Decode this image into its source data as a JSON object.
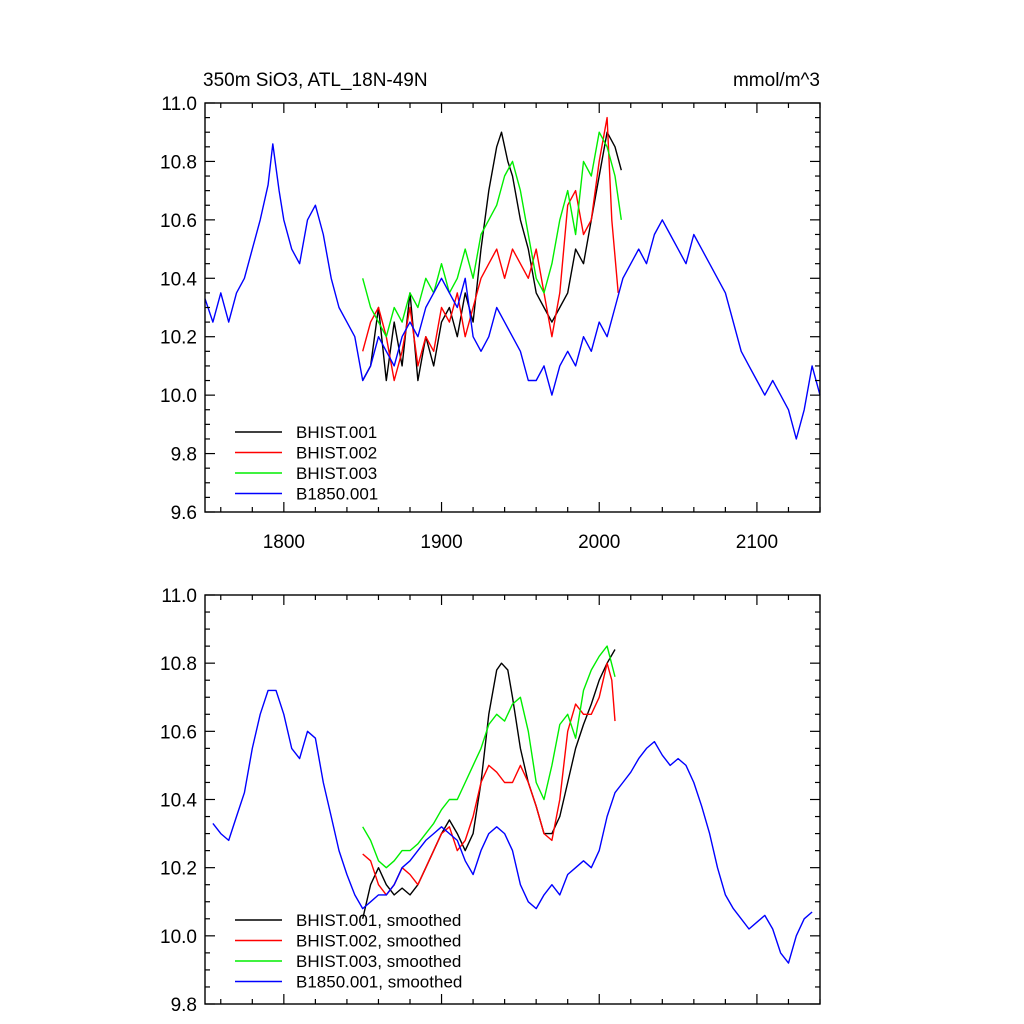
{
  "chart_data": [
    {
      "type": "line",
      "title": "350m SiO3, ATL_18N-49N",
      "units": "mmol/m^3",
      "xlim": [
        1750,
        2140
      ],
      "ylim": [
        9.6,
        11.0
      ],
      "xticks": [
        1800,
        1900,
        2000,
        2100
      ],
      "yticks": [
        9.6,
        9.8,
        10.0,
        10.2,
        10.4,
        10.6,
        10.8,
        11.0
      ],
      "xtick_labels": [
        "1800",
        "1900",
        "2000",
        "2100"
      ],
      "ytick_labels": [
        "9.6",
        "9.8",
        "10.0",
        "10.2",
        "10.4",
        "10.6",
        "10.8",
        "11.0"
      ],
      "legend_position": "bottom-left",
      "series": [
        {
          "name": "BHIST.001",
          "color": "#000000",
          "x": [
            1850,
            1855,
            1860,
            1865,
            1870,
            1875,
            1880,
            1885,
            1890,
            1895,
            1900,
            1905,
            1910,
            1915,
            1920,
            1925,
            1930,
            1935,
            1938,
            1942,
            1945,
            1950,
            1955,
            1960,
            1965,
            1970,
            1975,
            1980,
            1985,
            1990,
            1995,
            2000,
            2005,
            2010,
            2014
          ],
          "values": [
            10.05,
            10.1,
            10.3,
            10.05,
            10.25,
            10.1,
            10.35,
            10.05,
            10.2,
            10.1,
            10.25,
            10.3,
            10.2,
            10.35,
            10.25,
            10.5,
            10.7,
            10.85,
            10.9,
            10.8,
            10.75,
            10.6,
            10.5,
            10.35,
            10.3,
            10.25,
            10.3,
            10.35,
            10.5,
            10.45,
            10.6,
            10.75,
            10.9,
            10.85,
            10.77
          ]
        },
        {
          "name": "BHIST.002",
          "color": "#ff0000",
          "x": [
            1850,
            1855,
            1860,
            1865,
            1870,
            1875,
            1880,
            1885,
            1890,
            1895,
            1900,
            1905,
            1910,
            1915,
            1920,
            1925,
            1930,
            1935,
            1940,
            1945,
            1950,
            1955,
            1960,
            1965,
            1970,
            1975,
            1980,
            1985,
            1990,
            1995,
            2000,
            2005,
            2008,
            2012
          ],
          "values": [
            10.15,
            10.25,
            10.3,
            10.2,
            10.05,
            10.15,
            10.3,
            10.1,
            10.2,
            10.15,
            10.3,
            10.25,
            10.35,
            10.2,
            10.3,
            10.4,
            10.45,
            10.5,
            10.4,
            10.5,
            10.45,
            10.4,
            10.5,
            10.35,
            10.2,
            10.35,
            10.65,
            10.7,
            10.55,
            10.6,
            10.8,
            10.95,
            10.6,
            10.35
          ]
        },
        {
          "name": "BHIST.003",
          "color": "#00ee00",
          "x": [
            1850,
            1855,
            1860,
            1865,
            1870,
            1875,
            1880,
            1885,
            1890,
            1895,
            1900,
            1905,
            1910,
            1915,
            1920,
            1925,
            1930,
            1935,
            1940,
            1945,
            1950,
            1955,
            1960,
            1965,
            1970,
            1975,
            1980,
            1985,
            1990,
            1995,
            2000,
            2005,
            2010,
            2014
          ],
          "values": [
            10.4,
            10.3,
            10.25,
            10.2,
            10.3,
            10.25,
            10.35,
            10.3,
            10.4,
            10.35,
            10.45,
            10.35,
            10.4,
            10.5,
            10.4,
            10.55,
            10.6,
            10.65,
            10.75,
            10.8,
            10.7,
            10.55,
            10.4,
            10.35,
            10.45,
            10.6,
            10.7,
            10.55,
            10.8,
            10.75,
            10.9,
            10.85,
            10.75,
            10.6
          ]
        },
        {
          "name": "B1850.001",
          "color": "#0000ff",
          "x": [
            1750,
            1755,
            1760,
            1765,
            1770,
            1775,
            1780,
            1785,
            1790,
            1793,
            1797,
            1800,
            1805,
            1810,
            1815,
            1820,
            1825,
            1830,
            1835,
            1840,
            1845,
            1850,
            1855,
            1860,
            1865,
            1870,
            1875,
            1880,
            1885,
            1890,
            1895,
            1900,
            1905,
            1910,
            1915,
            1920,
            1925,
            1930,
            1935,
            1940,
            1945,
            1950,
            1955,
            1960,
            1965,
            1970,
            1975,
            1980,
            1985,
            1990,
            1995,
            2000,
            2005,
            2010,
            2015,
            2020,
            2025,
            2030,
            2035,
            2040,
            2045,
            2050,
            2055,
            2060,
            2065,
            2070,
            2075,
            2080,
            2085,
            2090,
            2095,
            2100,
            2105,
            2110,
            2115,
            2120,
            2125,
            2130,
            2135,
            2140
          ],
          "values": [
            10.33,
            10.25,
            10.35,
            10.25,
            10.35,
            10.4,
            10.5,
            10.6,
            10.72,
            10.86,
            10.7,
            10.6,
            10.5,
            10.45,
            10.6,
            10.65,
            10.55,
            10.4,
            10.3,
            10.25,
            10.2,
            10.05,
            10.1,
            10.2,
            10.15,
            10.1,
            10.2,
            10.25,
            10.2,
            10.3,
            10.35,
            10.4,
            10.35,
            10.3,
            10.4,
            10.2,
            10.15,
            10.2,
            10.3,
            10.25,
            10.2,
            10.15,
            10.05,
            10.05,
            10.1,
            10.0,
            10.1,
            10.15,
            10.1,
            10.2,
            10.15,
            10.25,
            10.2,
            10.3,
            10.4,
            10.45,
            10.5,
            10.45,
            10.55,
            10.6,
            10.55,
            10.5,
            10.45,
            10.55,
            10.5,
            10.45,
            10.4,
            10.35,
            10.25,
            10.15,
            10.1,
            10.05,
            10.0,
            10.05,
            10.0,
            9.95,
            9.85,
            9.95,
            10.1,
            10.0
          ]
        }
      ]
    },
    {
      "type": "line",
      "title": "",
      "xlim": [
        1750,
        2140
      ],
      "ylim": [
        9.8,
        11.0
      ],
      "xticks": [
        1800,
        1900,
        2000,
        2100
      ],
      "yticks": [
        9.8,
        10.0,
        10.2,
        10.4,
        10.6,
        10.8,
        11.0
      ],
      "ytick_labels": [
        "9.8",
        "10.0",
        "10.2",
        "10.4",
        "10.6",
        "10.8",
        "11.0"
      ],
      "legend_position": "bottom-left",
      "series": [
        {
          "name": "BHIST.001, smoothed",
          "color": "#000000",
          "x": [
            1850,
            1855,
            1860,
            1865,
            1870,
            1875,
            1880,
            1885,
            1890,
            1895,
            1900,
            1905,
            1910,
            1915,
            1920,
            1925,
            1930,
            1935,
            1938,
            1942,
            1945,
            1950,
            1955,
            1960,
            1965,
            1970,
            1975,
            1980,
            1985,
            1990,
            1995,
            2000,
            2005,
            2010
          ],
          "values": [
            10.05,
            10.15,
            10.2,
            10.15,
            10.12,
            10.14,
            10.12,
            10.15,
            10.2,
            10.25,
            10.3,
            10.34,
            10.3,
            10.25,
            10.3,
            10.45,
            10.65,
            10.78,
            10.8,
            10.78,
            10.7,
            10.55,
            10.45,
            10.38,
            10.3,
            10.3,
            10.35,
            10.45,
            10.55,
            10.62,
            10.68,
            10.75,
            10.8,
            10.84
          ]
        },
        {
          "name": "BHIST.002, smoothed",
          "color": "#ff0000",
          "x": [
            1850,
            1855,
            1860,
            1865,
            1870,
            1875,
            1880,
            1885,
            1890,
            1895,
            1900,
            1905,
            1910,
            1915,
            1920,
            1925,
            1930,
            1935,
            1940,
            1945,
            1950,
            1955,
            1960,
            1965,
            1970,
            1975,
            1980,
            1985,
            1990,
            1995,
            2000,
            2005,
            2008,
            2010
          ],
          "values": [
            10.24,
            10.22,
            10.15,
            10.12,
            10.15,
            10.2,
            10.18,
            10.15,
            10.2,
            10.25,
            10.3,
            10.32,
            10.25,
            10.28,
            10.35,
            10.45,
            10.5,
            10.48,
            10.45,
            10.45,
            10.5,
            10.45,
            10.38,
            10.3,
            10.28,
            10.4,
            10.6,
            10.68,
            10.65,
            10.65,
            10.7,
            10.8,
            10.75,
            10.63
          ]
        },
        {
          "name": "BHIST.003, smoothed",
          "color": "#00ee00",
          "x": [
            1850,
            1855,
            1860,
            1865,
            1870,
            1875,
            1880,
            1885,
            1890,
            1895,
            1900,
            1905,
            1910,
            1915,
            1920,
            1925,
            1930,
            1935,
            1940,
            1945,
            1950,
            1955,
            1960,
            1965,
            1970,
            1975,
            1980,
            1985,
            1990,
            1995,
            2000,
            2005,
            2010
          ],
          "values": [
            10.32,
            10.28,
            10.22,
            10.2,
            10.22,
            10.25,
            10.25,
            10.27,
            10.3,
            10.33,
            10.37,
            10.4,
            10.4,
            10.45,
            10.5,
            10.55,
            10.62,
            10.65,
            10.63,
            10.68,
            10.7,
            10.6,
            10.45,
            10.4,
            10.5,
            10.62,
            10.65,
            10.58,
            10.72,
            10.78,
            10.82,
            10.85,
            10.76
          ]
        },
        {
          "name": "B1850.001, smoothed",
          "color": "#0000ff",
          "x": [
            1755,
            1760,
            1765,
            1770,
            1775,
            1780,
            1785,
            1790,
            1795,
            1800,
            1805,
            1810,
            1815,
            1820,
            1825,
            1830,
            1835,
            1840,
            1845,
            1850,
            1855,
            1860,
            1865,
            1870,
            1875,
            1880,
            1885,
            1890,
            1895,
            1900,
            1905,
            1910,
            1915,
            1920,
            1925,
            1930,
            1935,
            1940,
            1945,
            1950,
            1955,
            1960,
            1965,
            1970,
            1975,
            1980,
            1985,
            1990,
            1995,
            2000,
            2005,
            2010,
            2015,
            2020,
            2025,
            2030,
            2035,
            2040,
            2045,
            2050,
            2055,
            2060,
            2065,
            2070,
            2075,
            2080,
            2085,
            2090,
            2095,
            2100,
            2105,
            2110,
            2115,
            2120,
            2125,
            2130,
            2135
          ],
          "values": [
            10.33,
            10.3,
            10.28,
            10.35,
            10.42,
            10.55,
            10.65,
            10.72,
            10.72,
            10.65,
            10.55,
            10.52,
            10.6,
            10.58,
            10.45,
            10.35,
            10.25,
            10.18,
            10.12,
            10.08,
            10.1,
            10.12,
            10.12,
            10.15,
            10.2,
            10.22,
            10.25,
            10.28,
            10.3,
            10.32,
            10.3,
            10.28,
            10.22,
            10.18,
            10.25,
            10.3,
            10.32,
            10.3,
            10.25,
            10.15,
            10.1,
            10.08,
            10.12,
            10.15,
            10.12,
            10.18,
            10.2,
            10.22,
            10.2,
            10.25,
            10.35,
            10.42,
            10.45,
            10.48,
            10.52,
            10.55,
            10.57,
            10.53,
            10.5,
            10.52,
            10.5,
            10.45,
            10.38,
            10.3,
            10.2,
            10.12,
            10.08,
            10.05,
            10.02,
            10.04,
            10.06,
            10.02,
            9.95,
            9.92,
            10.0,
            10.05,
            10.07
          ]
        }
      ]
    }
  ]
}
